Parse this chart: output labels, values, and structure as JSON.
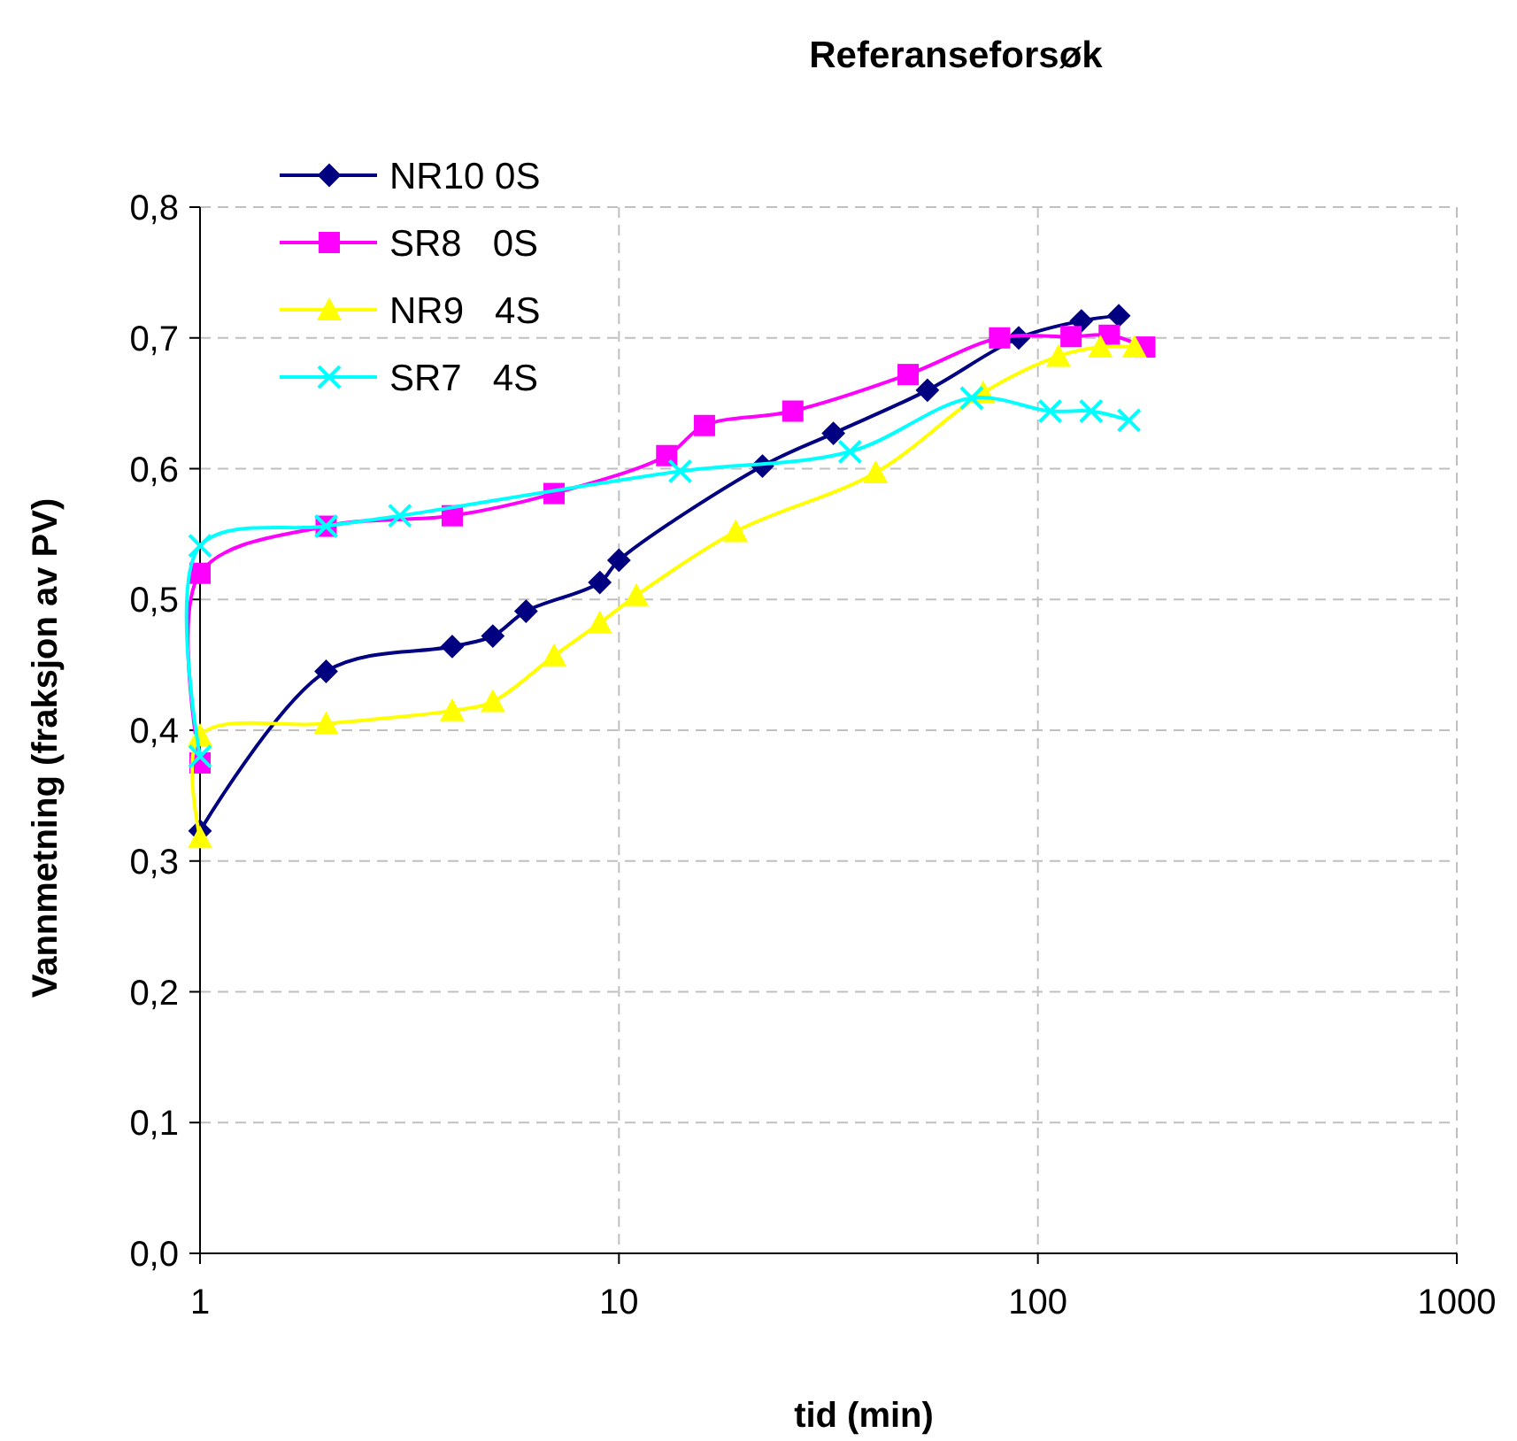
{
  "chart_data": {
    "type": "line",
    "title": "Referanseforsøk",
    "xlabel": "tid (min)",
    "ylabel": "Vannmetning (fraksjon av PV)",
    "log": "x",
    "grid": true,
    "legend": "top left",
    "xlim": [
      1,
      1000
    ],
    "xticks": [
      1,
      10,
      100,
      1000
    ],
    "ylim": [
      0,
      0.8
    ],
    "yticks": [
      {
        "value": 0,
        "label": "0,0"
      },
      {
        "value": 0.1,
        "label": "0,1"
      },
      {
        "value": 0.2,
        "label": "0,2"
      },
      {
        "value": 0.3,
        "label": "0,3"
      },
      {
        "value": 0.4,
        "label": "0,4"
      },
      {
        "value": 0.5,
        "label": "0,5"
      },
      {
        "value": 0.6,
        "label": "0,6"
      },
      {
        "value": 0.7,
        "label": "0,7"
      },
      {
        "value": 0.8,
        "label": "0,8"
      }
    ],
    "series": [
      {
        "name": "NR10 0S",
        "color": "#000080",
        "marker": "diamond",
        "x": [
          1,
          2,
          4,
          5,
          6,
          9,
          10,
          22,
          32.5,
          54.5,
          90,
          127,
          156
        ],
        "values": [
          0.323,
          0.445,
          0.464,
          0.472,
          0.491,
          0.513,
          0.53,
          0.602,
          0.627,
          0.66,
          0.7,
          0.713,
          0.717
        ]
      },
      {
        "name": "SR8   0S",
        "color": "#ff00ff",
        "marker": "square",
        "x": [
          1,
          1,
          2,
          4,
          7,
          13,
          16,
          26,
          49,
          81,
          120,
          148,
          180
        ],
        "values": [
          0.375,
          0.52,
          0.556,
          0.564,
          0.581,
          0.61,
          0.633,
          0.644,
          0.672,
          0.7,
          0.701,
          0.702,
          0.693
        ]
      },
      {
        "name": "NR9   4S",
        "color": "#ffff00",
        "marker": "triangle",
        "x": [
          1,
          1,
          2,
          4,
          5,
          7,
          9,
          11,
          19,
          41,
          74,
          112,
          141,
          170
        ],
        "values": [
          0.318,
          0.396,
          0.405,
          0.415,
          0.422,
          0.457,
          0.482,
          0.503,
          0.552,
          0.597,
          0.658,
          0.686,
          0.693,
          0.693
        ]
      },
      {
        "name": "SR7   4S",
        "color": "#00ffff",
        "marker": "cross",
        "x": [
          1,
          1,
          2,
          3,
          14,
          35.6,
          69.5,
          107,
          134,
          165
        ],
        "values": [
          0.38,
          0.541,
          0.556,
          0.564,
          0.598,
          0.613,
          0.654,
          0.644,
          0.644,
          0.637
        ]
      }
    ]
  }
}
